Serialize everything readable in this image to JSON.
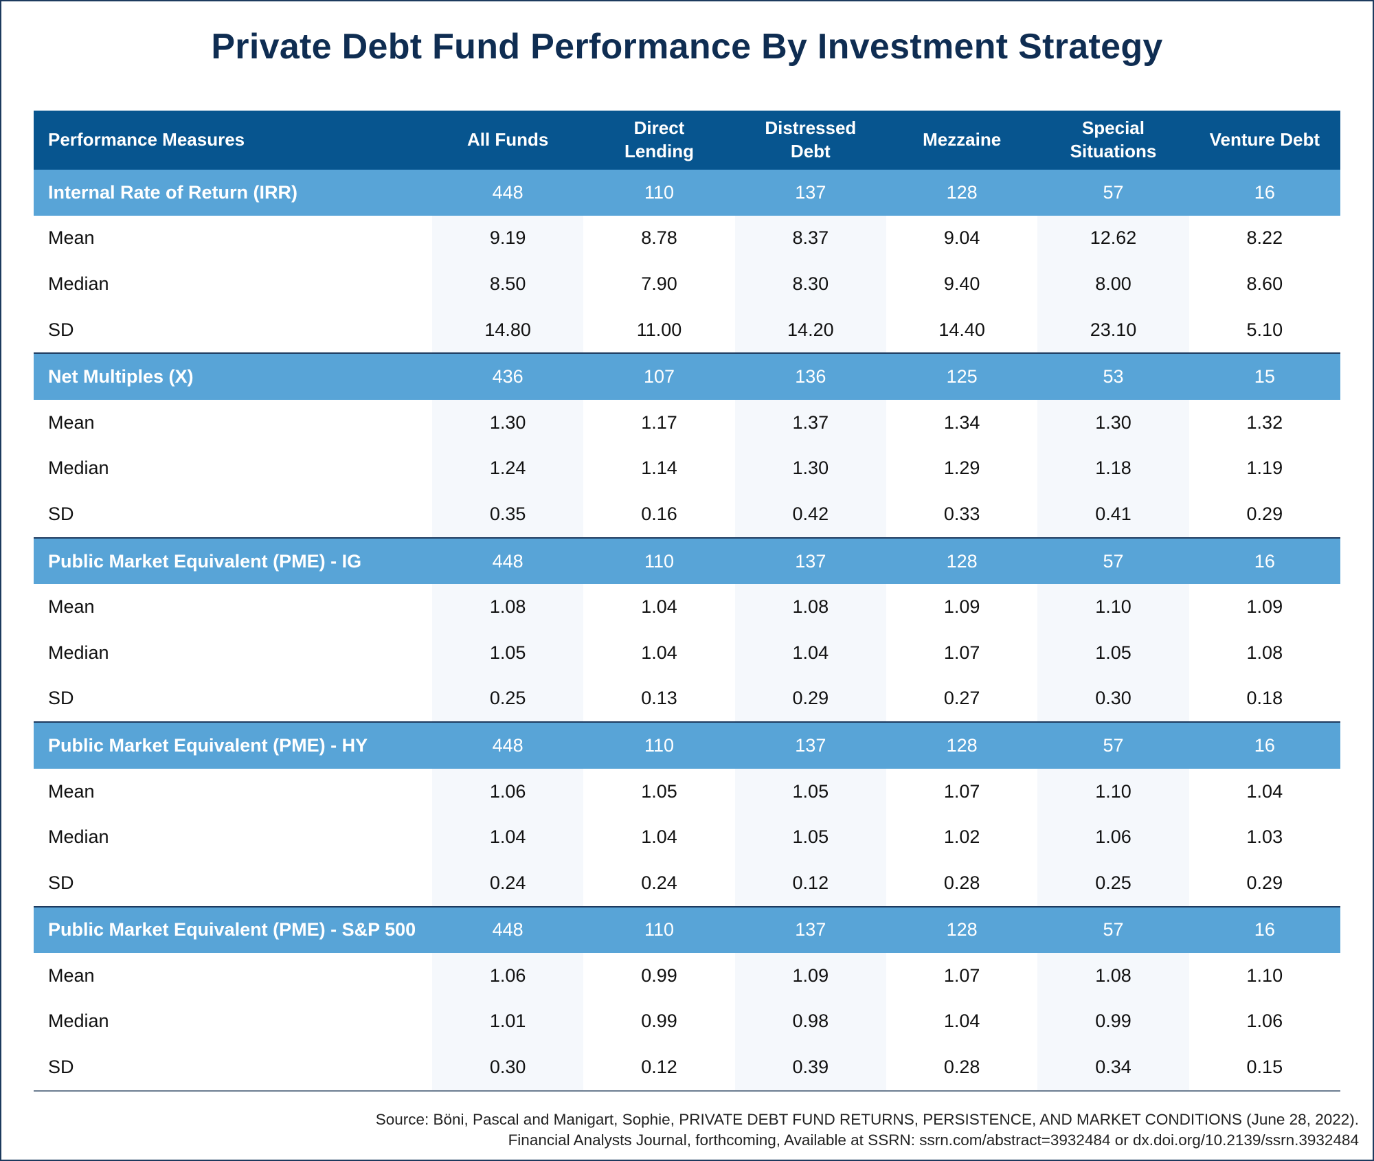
{
  "title": "Private Debt Fund Performance By Investment Strategy",
  "table": {
    "headers": [
      "Performance Measures",
      "All Funds",
      "Direct Lending",
      "Distressed Debt",
      "Mezzaine",
      "Special Situations",
      "Venture Debt"
    ],
    "sections": [
      {
        "label": "Internal Rate of Return (IRR)",
        "counts": [
          "448",
          "110",
          "137",
          "128",
          "57",
          "16"
        ],
        "rows": [
          {
            "label": "Mean",
            "values": [
              "9.19",
              "8.78",
              "8.37",
              "9.04",
              "12.62",
              "8.22"
            ]
          },
          {
            "label": "Median",
            "values": [
              "8.50",
              "7.90",
              "8.30",
              "9.40",
              "8.00",
              "8.60"
            ]
          },
          {
            "label": "SD",
            "values": [
              "14.80",
              "11.00",
              "14.20",
              "14.40",
              "23.10",
              "5.10"
            ]
          }
        ]
      },
      {
        "label": "Net Multiples (X)",
        "counts": [
          "436",
          "107",
          "136",
          "125",
          "53",
          "15"
        ],
        "rows": [
          {
            "label": "Mean",
            "values": [
              "1.30",
              "1.17",
              "1.37",
              "1.34",
              "1.30",
              "1.32"
            ]
          },
          {
            "label": "Median",
            "values": [
              "1.24",
              "1.14",
              "1.30",
              "1.29",
              "1.18",
              "1.19"
            ]
          },
          {
            "label": "SD",
            "values": [
              "0.35",
              "0.16",
              "0.42",
              "0.33",
              "0.41",
              "0.29"
            ]
          }
        ]
      },
      {
        "label": "Public Market Equivalent (PME) - IG",
        "counts": [
          "448",
          "110",
          "137",
          "128",
          "57",
          "16"
        ],
        "rows": [
          {
            "label": "Mean",
            "values": [
              "1.08",
              "1.04",
              "1.08",
              "1.09",
              "1.10",
              "1.09"
            ]
          },
          {
            "label": "Median",
            "values": [
              "1.05",
              "1.04",
              "1.04",
              "1.07",
              "1.05",
              "1.08"
            ]
          },
          {
            "label": "SD",
            "values": [
              "0.25",
              "0.13",
              "0.29",
              "0.27",
              "0.30",
              "0.18"
            ]
          }
        ]
      },
      {
        "label": "Public Market Equivalent (PME) - HY",
        "counts": [
          "448",
          "110",
          "137",
          "128",
          "57",
          "16"
        ],
        "rows": [
          {
            "label": "Mean",
            "values": [
              "1.06",
              "1.05",
              "1.05",
              "1.07",
              "1.10",
              "1.04"
            ]
          },
          {
            "label": "Median",
            "values": [
              "1.04",
              "1.04",
              "1.05",
              "1.02",
              "1.06",
              "1.03"
            ]
          },
          {
            "label": "SD",
            "values": [
              "0.24",
              "0.24",
              "0.12",
              "0.28",
              "0.25",
              "0.29"
            ]
          }
        ]
      },
      {
        "label": "Public Market Equivalent (PME) - S&P 500",
        "counts": [
          "448",
          "110",
          "137",
          "128",
          "57",
          "16"
        ],
        "rows": [
          {
            "label": "Mean",
            "values": [
              "1.06",
              "0.99",
              "1.09",
              "1.07",
              "1.08",
              "1.10"
            ]
          },
          {
            "label": "Median",
            "values": [
              "1.01",
              "0.99",
              "0.98",
              "1.04",
              "0.99",
              "1.06"
            ]
          },
          {
            "label": "SD",
            "values": [
              "0.30",
              "0.12",
              "0.39",
              "0.28",
              "0.34",
              "0.15"
            ]
          }
        ]
      }
    ]
  },
  "source": {
    "line1": "Source: Böni, Pascal and Manigart, Sophie, PRIVATE DEBT FUND RETURNS, PERSISTENCE, AND MARKET CONDITIONS (June 28, 2022).",
    "line2": "Financial Analysts Journal, forthcoming, Available at SSRN: ssrn.com/abstract=3932484 or dx.doi.org/10.2139/ssrn.3932484"
  },
  "colors": {
    "header": "#07558f",
    "section": "#58a4d7",
    "title": "#0f2d52",
    "shade": "#f5f8fc"
  }
}
